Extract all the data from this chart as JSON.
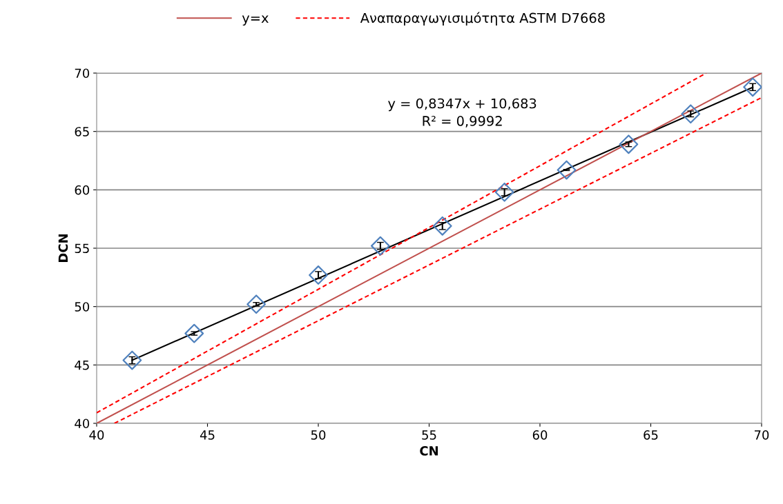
{
  "chart_data": {
    "type": "scatter",
    "xlabel": "CN",
    "ylabel": "DCN",
    "xlim": [
      40,
      70
    ],
    "ylim": [
      40,
      70
    ],
    "xticks": [
      40,
      45,
      50,
      55,
      60,
      65,
      70
    ],
    "yticks": [
      40,
      45,
      50,
      55,
      60,
      65,
      70
    ],
    "grid": "y",
    "legend": "top",
    "annotations": [
      "y = 0,8347x + 10,683",
      "R² = 0,9992"
    ],
    "series": [
      {
        "marker": "diamond",
        "color": "#4f81bd",
        "x": [
          41.6,
          44.4,
          47.2,
          50.0,
          52.8,
          55.6,
          58.4,
          61.2,
          64.0,
          66.8,
          69.6
        ],
        "values": [
          45.4,
          47.7,
          50.2,
          52.7,
          55.2,
          56.9,
          59.8,
          61.7,
          63.9,
          66.5,
          68.8
        ],
        "errors": [
          0.3,
          0.15,
          0.15,
          0.3,
          0.3,
          0.3,
          0.3,
          0.05,
          0.2,
          0.25,
          0.3
        ]
      },
      {
        "type": "line",
        "line_style": "solid",
        "color": "#000000",
        "x": [
          41.6,
          69.6
        ],
        "values": [
          45.41,
          68.78
        ]
      },
      {
        "type": "line",
        "name": "y=x",
        "line_style": "solid",
        "color": "#c0504d",
        "x": [
          40,
          70
        ],
        "values": [
          40,
          70
        ]
      },
      {
        "type": "line",
        "name": "Αναπαραγωγισιμότητα ASTM D7668",
        "line_style": "dashed",
        "color": "#ff0000",
        "x": [
          40,
          67.5
        ],
        "values": [
          40.9,
          70
        ]
      },
      {
        "type": "line",
        "line_style": "dashed",
        "color": "#ff0000",
        "x": [
          40.8,
          70
        ],
        "values": [
          40,
          67.9
        ]
      }
    ]
  }
}
